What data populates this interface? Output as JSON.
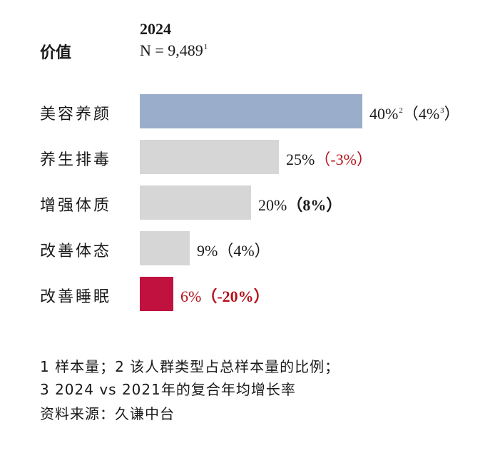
{
  "header": {
    "category_heading": "价值",
    "year": "2024",
    "sample": "N = 9,489",
    "sample_note": "1"
  },
  "chart_data": {
    "type": "bar",
    "orientation": "horizontal",
    "categories": [
      "美容养颜",
      "养生排毒",
      "增强体质",
      "改善体态",
      "改善睡眠"
    ],
    "values": [
      40,
      25,
      20,
      9,
      6
    ],
    "growth": [
      4,
      -3,
      8,
      4,
      -20
    ],
    "value_labels": [
      "40%",
      "25%",
      "20%",
      "9%",
      "6%"
    ],
    "value_label_note": "2",
    "growth_labels": [
      "（4%",
      "（-3%）",
      "（8%）",
      "（4%）",
      "（-20%）"
    ],
    "growth_label_note": "3",
    "growth_closing": "）",
    "colors": {
      "highlight_top": "#9aaecb",
      "neutral": "#d6d6d6",
      "highlight_bottom": "#c0113f",
      "negative_text": "#b5121b"
    },
    "xlim": [
      0,
      40
    ]
  },
  "footnotes": [
    "1 样本量；2 该人群类型占总样本量的比例；",
    "3 2024 vs 2021年的复合年均增长率",
    "资料来源：久谦中台"
  ]
}
